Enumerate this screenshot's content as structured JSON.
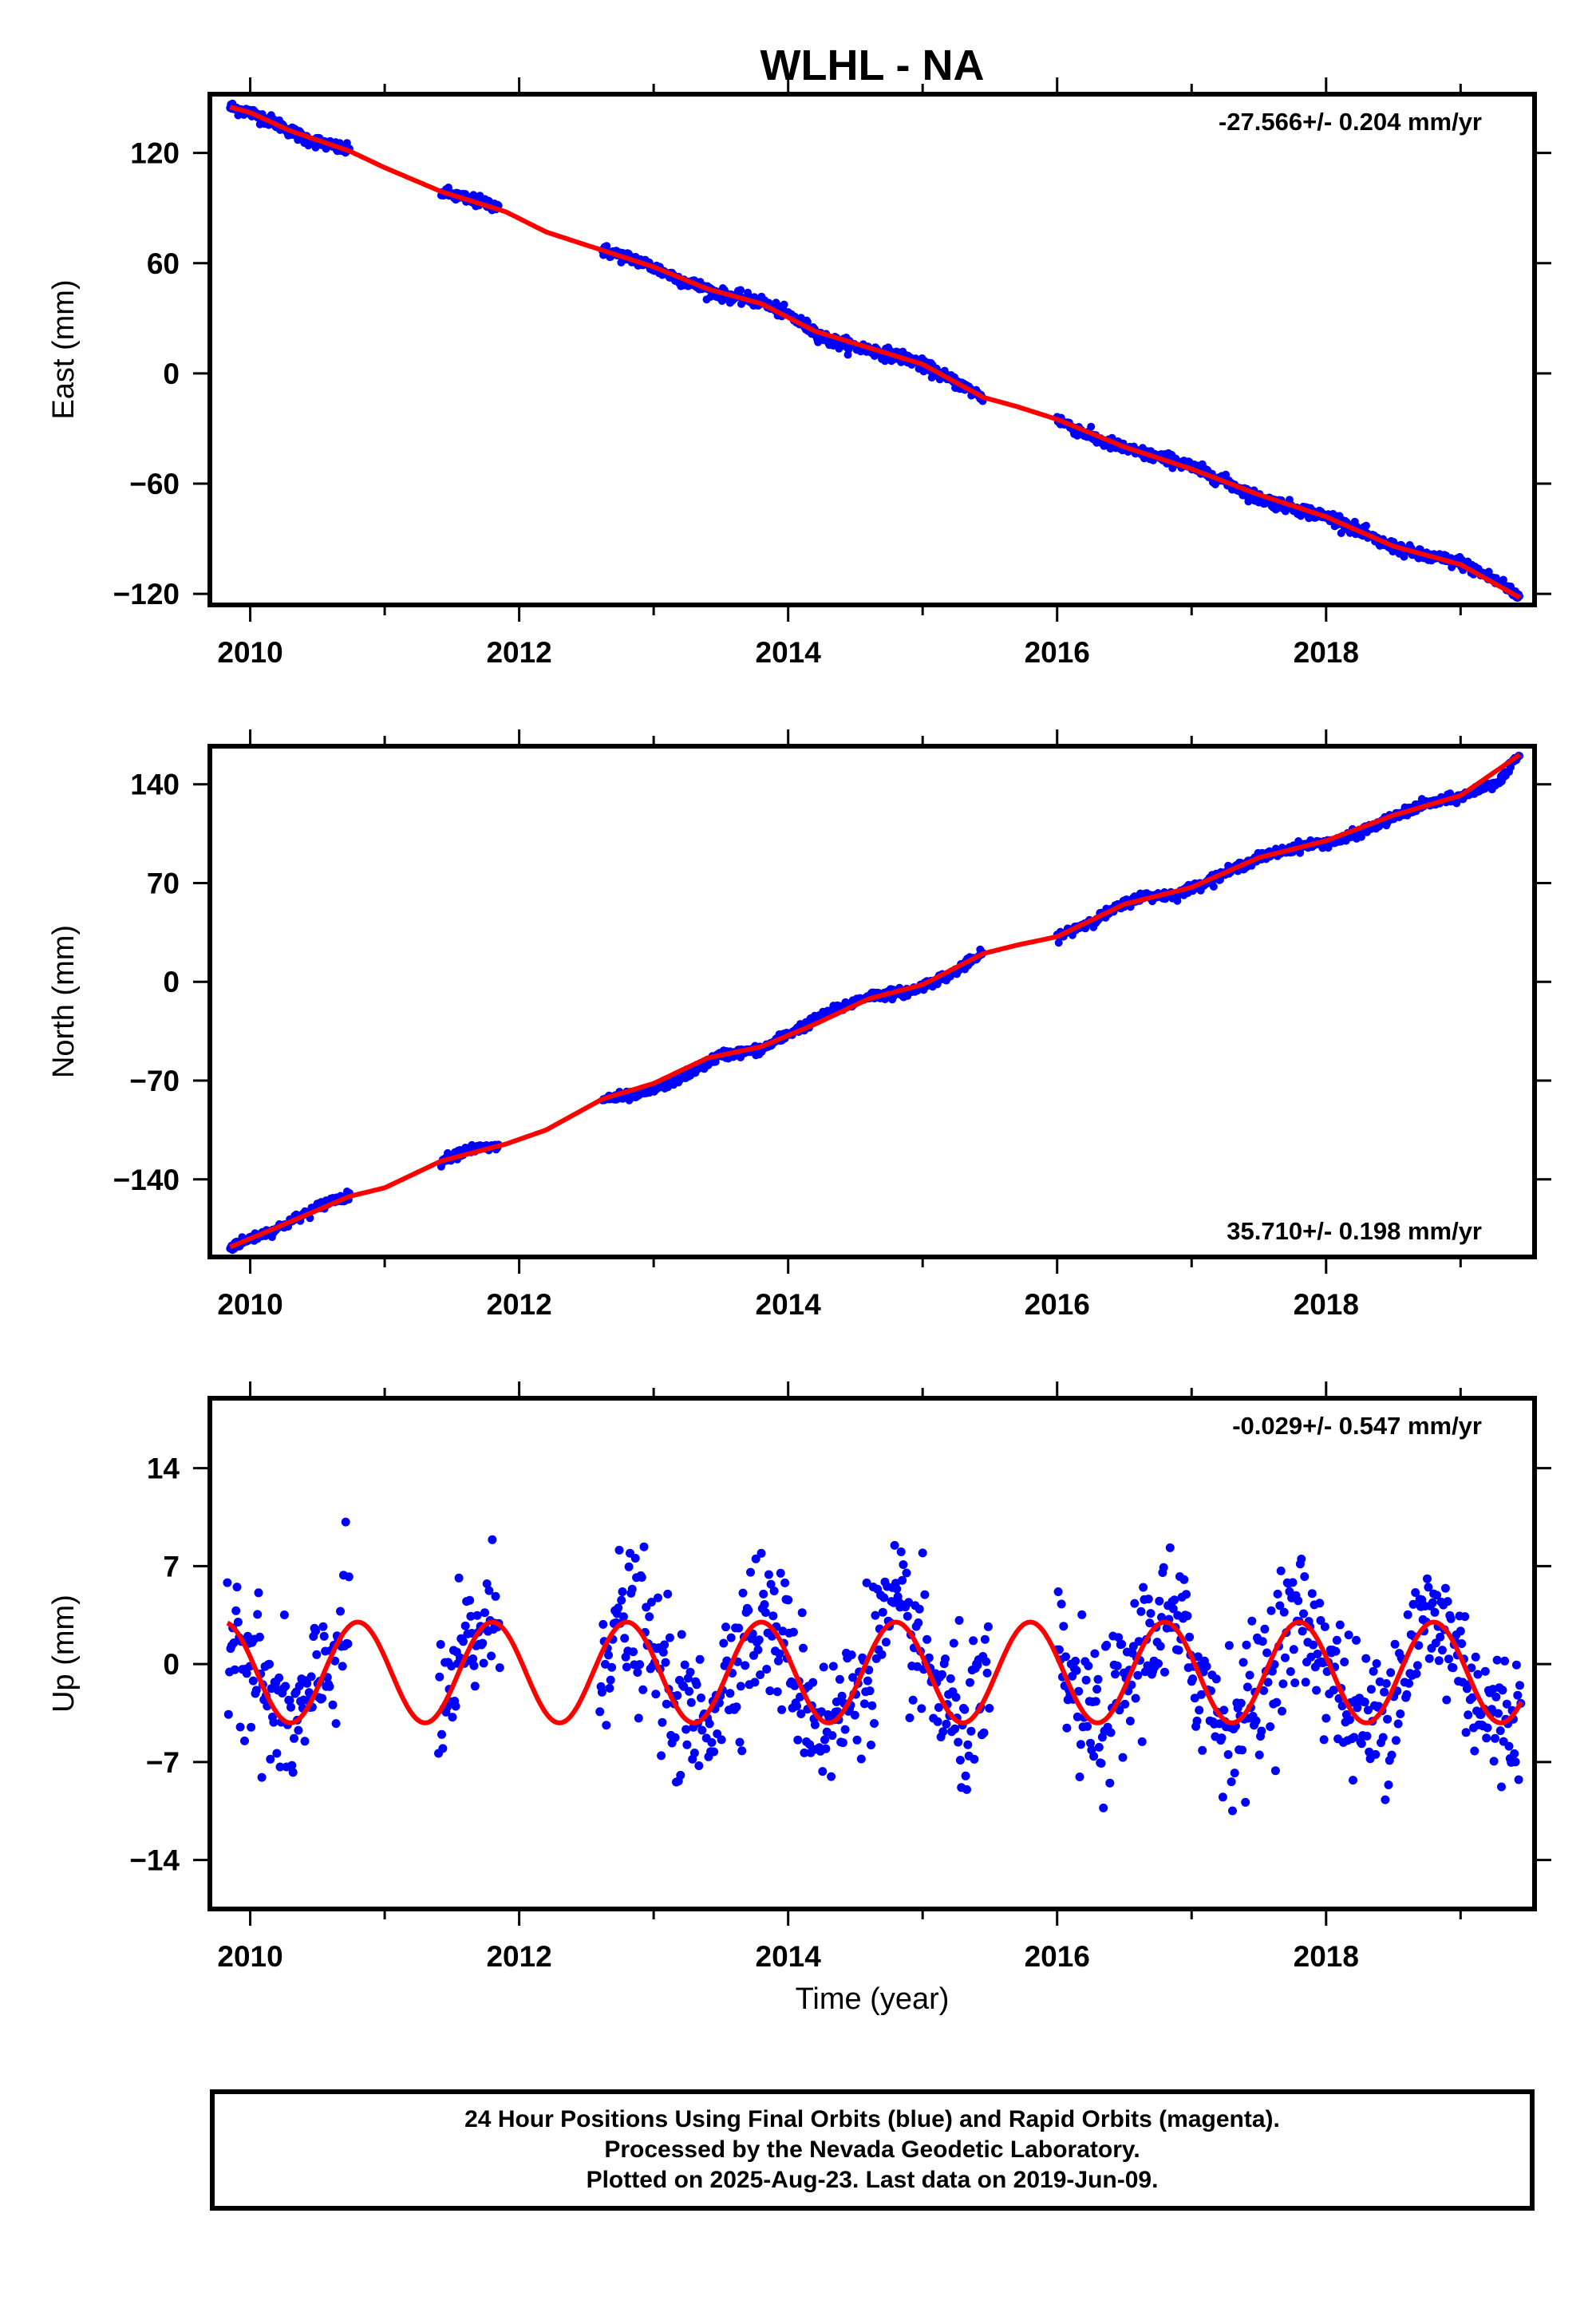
{
  "title": "WLHL - NA",
  "xlabel": "Time (year)",
  "x_ticks": [
    2010,
    2012,
    2014,
    2016,
    2018
  ],
  "colors": {
    "observed": "#0000ff",
    "model": "#ff0000",
    "frame": "#000000"
  },
  "footer": {
    "line1": "24 Hour Positions Using Final Orbits (blue) and Rapid Orbits (magenta).",
    "line2": "Processed by the Nevada Geodetic Laboratory.",
    "line3": "Plotted on 2025-Aug-23. Last data on 2019-Jun-09."
  },
  "chart_data": [
    {
      "type": "scatter",
      "component": "east",
      "ylabel": "East (mm)",
      "rate_label": "-27.566+/- 0.204 mm/yr",
      "rate_label_position": "top-right",
      "xlim": [
        2009.7,
        2019.55
      ],
      "ylim": [
        -126,
        152
      ],
      "yticks": [
        120,
        60,
        0,
        -60,
        -120
      ],
      "series": [
        {
          "kind": "observations",
          "x": [
            2009.85,
            2010.0,
            2010.2,
            2010.4,
            2010.6,
            2010.74,
            2011.42,
            2011.6,
            2011.85,
            2012.62,
            2012.9,
            2013.2,
            2013.5,
            2013.8,
            2014.0,
            2014.3,
            2014.6,
            2014.9,
            2015.2,
            2015.45,
            2016.0,
            2016.3,
            2016.6,
            2016.9,
            2017.2,
            2017.5,
            2017.8,
            2018.1,
            2018.4,
            2018.7,
            2019.0,
            2019.3,
            2019.44
          ],
          "y": [
            145,
            142,
            136,
            128,
            124,
            121,
            99,
            95,
            91,
            67,
            61,
            51,
            43,
            39,
            32,
            18,
            13,
            8,
            -3,
            -13,
            -25,
            -36,
            -43,
            -48,
            -57,
            -68,
            -74,
            -80,
            -92,
            -99,
            -103,
            -114,
            -122
          ]
        },
        {
          "kind": "model",
          "x": [
            2009.85,
            2010.0,
            2010.3,
            2010.74,
            2011.0,
            2011.42,
            2011.9,
            2012.2,
            2012.62,
            2013.0,
            2013.4,
            2013.8,
            2014.2,
            2014.6,
            2015.0,
            2015.45,
            2015.7,
            2016.0,
            2016.5,
            2017.0,
            2017.5,
            2018.0,
            2018.5,
            2019.0,
            2019.44
          ],
          "y": [
            145,
            142,
            132,
            121,
            112,
            99,
            88,
            77,
            67,
            58,
            46,
            38,
            23,
            14,
            5,
            -13,
            -18,
            -25,
            -40,
            -52,
            -66,
            -78,
            -94,
            -104,
            -122
          ]
        }
      ]
    },
    {
      "type": "scatter",
      "component": "north",
      "ylabel": "North (mm)",
      "rate_label": "35.710+/- 0.198 mm/yr",
      "rate_label_position": "bottom-right",
      "xlim": [
        2009.7,
        2019.55
      ],
      "ylim": [
        -195,
        167
      ],
      "yticks": [
        140,
        70,
        0,
        -70,
        -140
      ],
      "series": [
        {
          "kind": "observations",
          "x": [
            2009.85,
            2010.0,
            2010.2,
            2010.4,
            2010.6,
            2010.74,
            2011.42,
            2011.6,
            2011.85,
            2012.62,
            2012.9,
            2013.2,
            2013.5,
            2013.8,
            2014.0,
            2014.3,
            2014.6,
            2014.9,
            2015.2,
            2015.45,
            2016.0,
            2016.3,
            2016.6,
            2016.9,
            2017.2,
            2017.5,
            2017.8,
            2018.1,
            2018.4,
            2018.7,
            2019.0,
            2019.3,
            2019.44
          ],
          "y": [
            -188,
            -182,
            -175,
            -165,
            -155,
            -152,
            -127,
            -119,
            -117,
            -83,
            -80,
            -68,
            -52,
            -48,
            -37,
            -22,
            -10,
            -7,
            5,
            20,
            32,
            45,
            60,
            62,
            75,
            88,
            96,
            100,
            112,
            125,
            131,
            143,
            161
          ]
        },
        {
          "kind": "model",
          "x": [
            2009.85,
            2010.0,
            2010.3,
            2010.74,
            2011.0,
            2011.42,
            2011.9,
            2012.2,
            2012.62,
            2013.0,
            2013.4,
            2013.8,
            2014.2,
            2014.6,
            2015.0,
            2015.45,
            2015.7,
            2016.0,
            2016.5,
            2017.0,
            2017.5,
            2018.0,
            2018.5,
            2019.0,
            2019.44
          ],
          "y": [
            -188,
            -182,
            -170,
            -152,
            -146,
            -127,
            -115,
            -105,
            -83,
            -72,
            -54,
            -46,
            -30,
            -12,
            -2,
            20,
            26,
            32,
            55,
            67,
            88,
            100,
            118,
            132,
            161
          ]
        }
      ]
    },
    {
      "type": "scatter",
      "component": "up",
      "ylabel": "Up (mm)",
      "rate_label": "-0.029+/- 0.547 mm/yr",
      "rate_label_position": "top-right",
      "xlim": [
        2009.7,
        2019.55
      ],
      "ylim": [
        -17.5,
        19
      ],
      "yticks": [
        14,
        7,
        0,
        -7,
        -14
      ],
      "series": [
        {
          "kind": "observations",
          "segments": [
            [
              2009.83,
              2010.74
            ],
            [
              2011.4,
              2011.86
            ],
            [
              2012.6,
              2015.5
            ],
            [
              2016.0,
              2019.45
            ]
          ],
          "annual_amplitude": 3.6,
          "annual_offset": -0.6,
          "scatter_std": 2.6,
          "y_range": [
            -17.5,
            19
          ]
        },
        {
          "kind": "model",
          "function": "seasonal",
          "annual_amplitude": 3.6,
          "offset": -0.6,
          "peak_fraction_of_year": 0.8,
          "x_range": [
            2009.83,
            2019.45
          ]
        }
      ]
    }
  ]
}
